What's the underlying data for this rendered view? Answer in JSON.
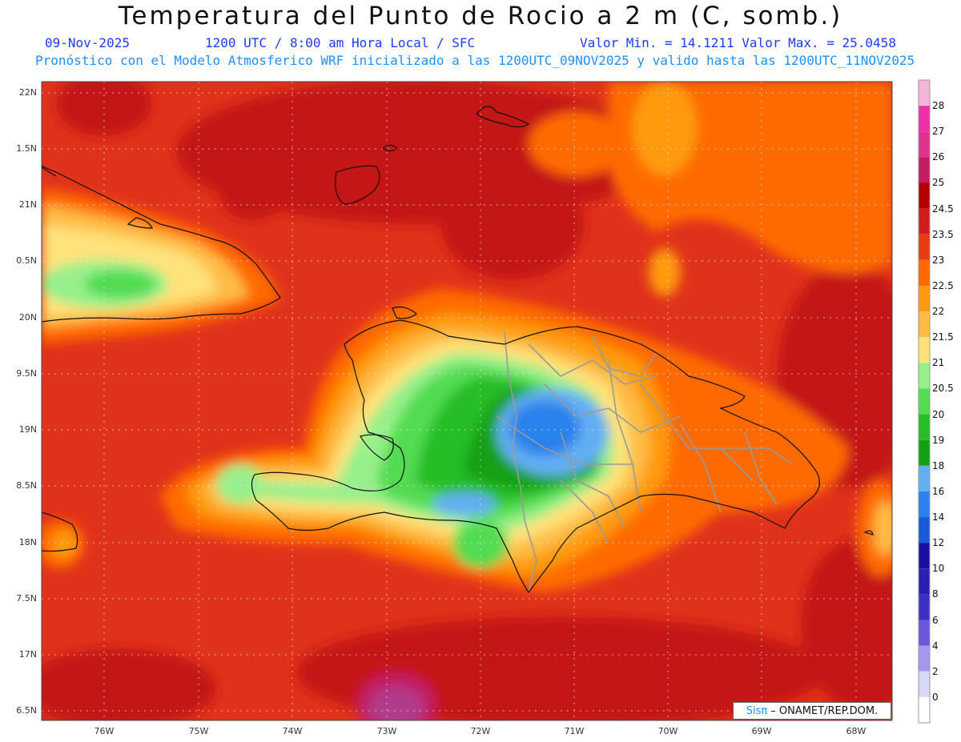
{
  "header": {
    "title": "Temperatura del Punto de Rocio a 2 m (C, somb.)",
    "date": "09-Nov-2025",
    "time": "1200 UTC / 8:00 am Hora Local / SFC",
    "stats": "Valor Min. = 14.1211  Valor Max. = 25.0458",
    "description": "Pronóstico con el Modelo Atmosferico WRF inicializado a las 1200UTC_09NOV2025 y valido hasta las  1200UTC_11NOV2025"
  },
  "axes": {
    "lat_ticks": [
      "22N",
      "1.5N",
      "21N",
      "0.5N",
      "20N",
      "9.5N",
      "19N",
      "8.5N",
      "18N",
      "7.5N",
      "17N",
      "6.5N"
    ],
    "lon_ticks": [
      "76W",
      "75W",
      "74W",
      "73W",
      "72W",
      "71W",
      "70W",
      "69W",
      "68W"
    ]
  },
  "colorbar": {
    "labels": [
      "28",
      "27",
      "26",
      "25",
      "24.5",
      "23.5",
      "23",
      "22.5",
      "22",
      "21.5",
      "21",
      "20.5",
      "20",
      "19",
      "18",
      "16",
      "14",
      "12",
      "10",
      "8",
      "6",
      "4",
      "2",
      "0"
    ],
    "colors": [
      "#f4b6d8",
      "#ee2fa6",
      "#e0338f",
      "#c21d63",
      "#b30000",
      "#d11d1d",
      "#e63c12",
      "#ff6a00",
      "#ff9a11",
      "#ffbc45",
      "#ffe27a",
      "#98f08c",
      "#52dc52",
      "#27bd27",
      "#12a012",
      "#63aef2",
      "#2b82ec",
      "#1a5ad6",
      "#1a0ea0",
      "#2a1fb0",
      "#3d30c4",
      "#6a58dc",
      "#a696ee",
      "#d8d8f8"
    ]
  },
  "credit": {
    "brand": "Sisπ",
    "text": "– ONAMET/REP.DOM."
  },
  "colors": {
    "background_field": "#e0321b",
    "subtitle_blue": "#1a3cff",
    "subtitle_lightblue": "#1e90ff"
  }
}
